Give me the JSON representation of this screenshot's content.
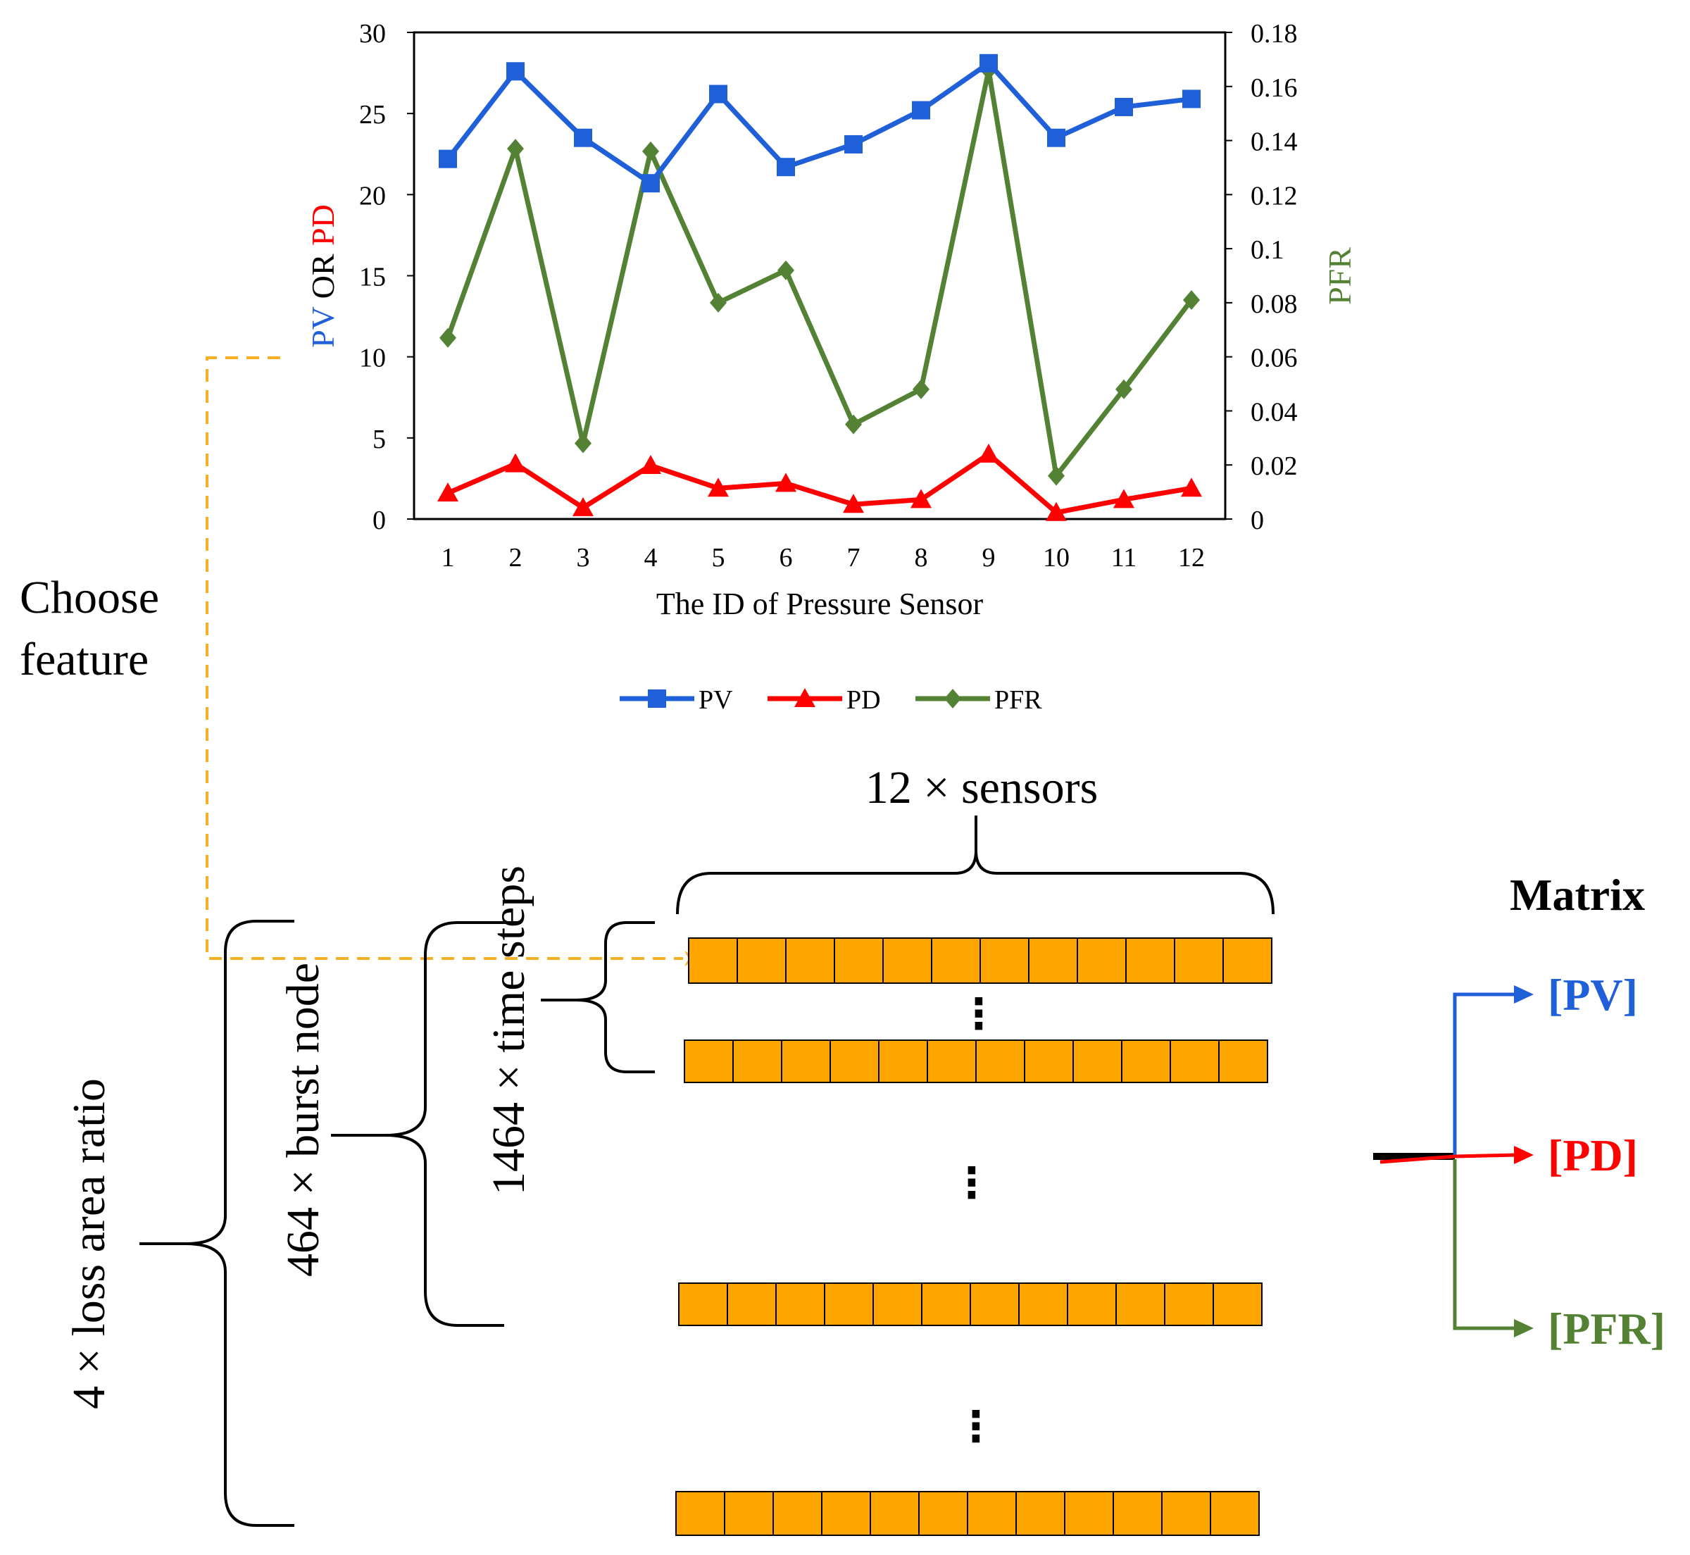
{
  "chart_data": {
    "type": "line",
    "xlabel": "The ID of Pressure Sensor",
    "x": [
      1,
      2,
      3,
      4,
      5,
      6,
      7,
      8,
      9,
      10,
      11,
      12
    ],
    "x_ticks": [
      "1",
      "2",
      "3",
      "4",
      "5",
      "6",
      "7",
      "8",
      "9",
      "10",
      "11",
      "12"
    ],
    "y_left": {
      "label_parts": [
        {
          "text": "PV",
          "color": "#1f5fd8"
        },
        {
          "text": " OR ",
          "color": "#000000"
        },
        {
          "text": "PD",
          "color": "#ff0000"
        }
      ],
      "ylim": [
        0,
        30
      ],
      "ticks": [
        "0",
        "5",
        "10",
        "15",
        "20",
        "25",
        "30"
      ]
    },
    "y_right": {
      "label": "PFR",
      "color": "#548235",
      "ylim": [
        0,
        0.18
      ],
      "ticks": [
        "0",
        "0.02",
        "0.04",
        "0.06",
        "0.08",
        "0.1",
        "0.12",
        "0.14",
        "0.16",
        "0.18"
      ]
    },
    "series": [
      {
        "name": "PV",
        "axis": "left",
        "color": "#1f5fd8",
        "marker": "square",
        "values": [
          22.2,
          27.6,
          23.5,
          20.7,
          26.2,
          21.7,
          23.1,
          25.2,
          28.1,
          23.5,
          25.4,
          25.9
        ]
      },
      {
        "name": "PD",
        "axis": "left",
        "color": "#ff0000",
        "marker": "triangle",
        "values": [
          1.6,
          3.4,
          0.7,
          3.3,
          1.9,
          2.2,
          0.9,
          1.2,
          4.0,
          0.4,
          1.2,
          1.9
        ]
      },
      {
        "name": "PFR",
        "axis": "right",
        "color": "#548235",
        "marker": "diamond",
        "values": [
          0.067,
          0.137,
          0.028,
          0.136,
          0.08,
          0.092,
          0.035,
          0.048,
          0.166,
          0.016,
          0.048,
          0.081
        ]
      }
    ],
    "legend": [
      "PV",
      "PD",
      "PFR"
    ],
    "legend_position": "bottom"
  },
  "diagram": {
    "choose_feature": [
      "Choose",
      "feature"
    ],
    "sensors_label": "12 × sensors",
    "time_steps_label": "1464 × time steps",
    "burst_node_label": "464 × burst node",
    "loss_area_label": "4 × loss area ratio",
    "matrix_title": "Matrix",
    "outputs": [
      {
        "label": "[PV]",
        "color": "#1f5fd8"
      },
      {
        "label": "[PD]",
        "color": "#ff0000"
      },
      {
        "label": "[PFR]",
        "color": "#548235"
      }
    ],
    "ellipsis": "⋮",
    "cells_per_row": 12,
    "cell_color": "#ffa500",
    "connector_color": "#f4b022"
  }
}
